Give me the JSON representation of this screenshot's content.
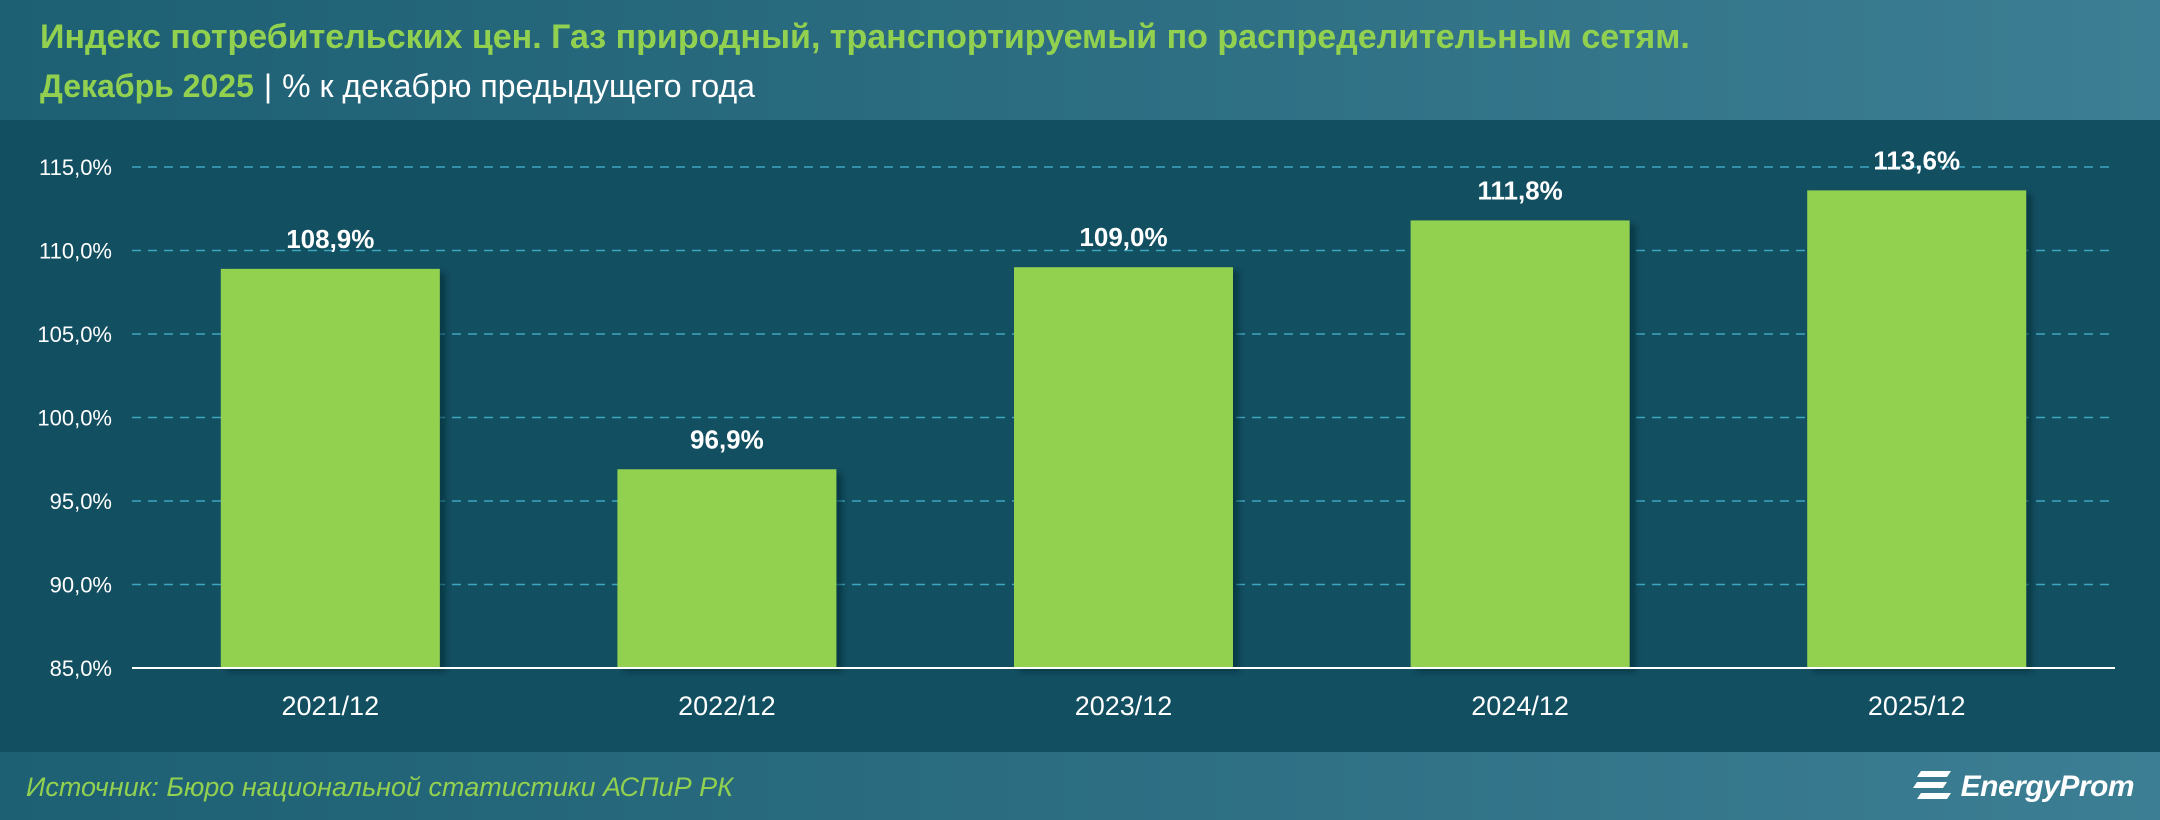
{
  "header": {
    "title": "Индекс потребительских цен. Газ природный, транспортируемый по распределительным сетям.",
    "period": "Декабрь 2025",
    "separator": "|",
    "unit": "% к декабрю предыдущего года"
  },
  "footer": {
    "source": "Источник: Бюро национальной статистики АСПиР РК",
    "logo_text": "EnergyProm"
  },
  "colors": {
    "background": "#124f61",
    "bar": "#92d050",
    "title": "#92d050",
    "gridline": "#3fa6c0",
    "text": "#ffffff"
  },
  "chart_data": {
    "type": "bar",
    "categories": [
      "2021/12",
      "2022/12",
      "2023/12",
      "2024/12",
      "2025/12"
    ],
    "values": [
      108.9,
      96.9,
      109.0,
      111.8,
      113.6
    ],
    "data_labels": [
      "108,9%",
      "96,9%",
      "109,0%",
      "111,8%",
      "113,6%"
    ],
    "ylim": [
      85,
      115
    ],
    "yticks": [
      85,
      90,
      95,
      100,
      105,
      110,
      115
    ],
    "ytick_labels": [
      "85,0%",
      "90,0%",
      "95,0%",
      "100,0%",
      "105,0%",
      "110,0%",
      "115,0%"
    ],
    "grid": true,
    "legend": false
  }
}
